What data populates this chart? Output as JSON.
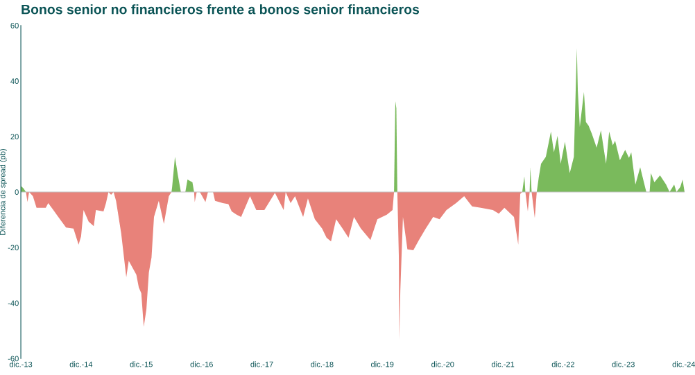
{
  "chart_data": {
    "type": "area",
    "title": "Bonos senior no financieros frente a bonos senior financieros",
    "ylabel": "Diferencia de spread (pb)",
    "x": [
      "2013-12-01",
      "2013-12-16",
      "2014-01-01",
      "2014-01-10",
      "2014-01-20",
      "2014-02-12",
      "2014-03-06",
      "2014-05-01",
      "2014-05-16",
      "2014-06-16",
      "2014-07-16",
      "2014-09-01",
      "2014-10-16",
      "2014-11-16",
      "2014-12-01",
      "2014-12-16",
      "2015-01-16",
      "2015-02-16",
      "2015-03-01",
      "2015-04-16",
      "2015-05-01",
      "2015-05-16",
      "2015-06-01",
      "2015-06-16",
      "2015-07-01",
      "2015-08-01",
      "2015-09-01",
      "2015-09-16",
      "2015-11-01",
      "2015-11-16",
      "2015-12-01",
      "2015-12-16",
      "2016-01-01",
      "2016-01-16",
      "2016-02-01",
      "2016-02-16",
      "2016-03-16",
      "2016-04-16",
      "2016-05-16",
      "2016-06-01",
      "2016-06-05",
      "2016-06-22",
      "2016-07-10",
      "2016-07-28",
      "2016-08-10",
      "2016-08-24",
      "2016-09-06",
      "2016-10-06",
      "2016-10-16",
      "2016-10-20",
      "2016-11-01",
      "2016-11-10",
      "2016-11-20",
      "2016-12-24",
      "2017-01-08",
      "2017-01-24",
      "2017-02-08",
      "2017-02-20",
      "2017-04-08",
      "2017-05-12",
      "2017-06-01",
      "2017-07-01",
      "2017-07-28",
      "2017-09-20",
      "2017-10-28",
      "2017-12-16",
      "2018-02-18",
      "2018-04-12",
      "2018-04-24",
      "2018-05-24",
      "2018-06-20",
      "2018-08-08",
      "2018-09-06",
      "2018-10-18",
      "2018-12-01",
      "2018-12-28",
      "2019-01-24",
      "2019-02-24",
      "2019-04-04",
      "2019-05-10",
      "2019-06-12",
      "2019-07-24",
      "2019-09-20",
      "2019-11-01",
      "2019-12-28",
      "2020-02-01",
      "2020-02-10",
      "2020-02-18",
      "2020-02-24",
      "2020-03-01",
      "2020-03-10",
      "2020-03-13",
      "2020-03-19",
      "2020-04-04",
      "2020-05-01",
      "2020-06-06",
      "2020-07-10",
      "2020-08-20",
      "2020-10-04",
      "2020-11-12",
      "2020-12-24",
      "2021-02-20",
      "2021-04-10",
      "2021-05-28",
      "2021-07-20",
      "2021-10-01",
      "2021-11-06",
      "2021-12-10",
      "2022-02-06",
      "2022-03-04",
      "2022-03-16",
      "2022-03-28",
      "2022-04-10",
      "2022-04-16",
      "2022-05-01",
      "2022-05-12",
      "2022-05-16",
      "2022-05-24",
      "2022-06-12",
      "2022-06-24",
      "2022-07-06",
      "2022-07-20",
      "2022-08-18",
      "2022-09-18",
      "2022-10-06",
      "2022-10-28",
      "2022-11-16",
      "2022-12-12",
      "2023-01-10",
      "2023-02-04",
      "2023-02-22",
      "2023-02-28",
      "2023-03-12",
      "2023-04-06",
      "2023-04-18",
      "2023-05-04",
      "2023-05-24",
      "2023-06-22",
      "2023-07-18",
      "2023-08-18",
      "2023-09-06",
      "2023-09-28",
      "2023-10-12",
      "2023-11-10",
      "2023-12-12",
      "2024-01-04",
      "2024-01-18",
      "2024-02-12",
      "2024-03-12",
      "2024-04-18",
      "2024-04-28",
      "2024-05-08",
      "2024-05-16",
      "2024-06-06",
      "2024-07-10",
      "2024-08-16",
      "2024-09-06",
      "2024-10-04",
      "2024-10-18",
      "2024-11-10",
      "2024-11-24",
      "2024-12-06"
    ],
    "series": [
      {
        "color": "#7aba5c",
        "values": [
          2.2,
          1.4,
          0,
          null,
          null,
          null,
          null,
          null,
          null,
          null,
          null,
          null,
          null,
          null,
          null,
          null,
          null,
          null,
          null,
          null,
          null,
          null,
          null,
          null,
          null,
          null,
          null,
          null,
          null,
          null,
          null,
          null,
          null,
          null,
          null,
          null,
          null,
          null,
          null,
          0,
          1.8,
          12.7,
          6,
          0,
          null,
          0,
          4.5,
          3.5,
          0,
          null,
          null,
          null,
          null,
          null,
          null,
          null,
          null,
          null,
          null,
          null,
          null,
          null,
          null,
          null,
          null,
          null,
          null,
          null,
          null,
          null,
          null,
          null,
          null,
          null,
          null,
          null,
          null,
          null,
          null,
          null,
          null,
          null,
          null,
          null,
          null,
          null,
          0,
          32.7,
          30.2,
          0,
          null,
          null,
          null,
          null,
          null,
          null,
          null,
          null,
          null,
          null,
          null,
          null,
          null,
          null,
          null,
          null,
          null,
          null,
          null,
          null,
          null,
          0,
          5.6,
          0,
          null,
          0,
          8.9,
          0,
          null,
          0,
          5.2,
          10.2,
          12.7,
          21.8,
          14.3,
          20.2,
          10.2,
          18.1,
          6.8,
          12.7,
          51.8,
          36.4,
          23.5,
          36,
          25.2,
          23.9,
          21,
          16,
          22.2,
          10.2,
          21.8,
          16.8,
          18.5,
          11.4,
          15.2,
          12.3,
          14.3,
          2.7,
          8.9,
          0,
          null,
          0,
          6.8,
          3.5,
          6,
          2.7,
          0,
          2.7,
          0,
          1.8,
          4.5,
          0
        ]
      },
      {
        "color": "#e8827a",
        "values": [
          null,
          null,
          0,
          -3.6,
          0,
          -1.5,
          -5.7,
          -5.7,
          -4,
          -6.5,
          -9,
          -12.8,
          -13.2,
          -19,
          -16,
          -6.5,
          -10.7,
          -12.3,
          -6.5,
          -7,
          -4,
          0,
          -1,
          0,
          -3.2,
          -14.8,
          -30.7,
          -24.8,
          -29.8,
          -34.4,
          -36.5,
          -48.6,
          -42.3,
          -29,
          -23.6,
          -9,
          -3.2,
          -11.5,
          -1.5,
          0,
          null,
          null,
          null,
          null,
          null,
          null,
          null,
          null,
          0,
          -3.6,
          0,
          null,
          0,
          -3.6,
          0,
          null,
          0,
          -3.2,
          -4,
          -4.4,
          -7,
          -8.2,
          -9,
          -1.5,
          -6.5,
          -6.5,
          -0.3,
          -6.5,
          0,
          -4,
          -1.5,
          -9,
          -2.3,
          -9.8,
          -13.2,
          -16.5,
          -17.8,
          -9.8,
          -13.2,
          -16.5,
          -9,
          -13.2,
          -17.3,
          -9.8,
          -8.2,
          -6.5,
          0,
          null,
          null,
          0,
          -23,
          -53.2,
          -35.7,
          -9,
          -20.7,
          -21,
          -17.3,
          -13.2,
          -9,
          -9.8,
          -6.5,
          -4,
          -1.5,
          -5.2,
          -5.7,
          -6.5,
          -7.8,
          -5.7,
          -9,
          -19,
          -0.7,
          0,
          null,
          0,
          -7,
          0,
          null,
          0,
          -9.4,
          0,
          null,
          null,
          null,
          null,
          null,
          null,
          null,
          null,
          null,
          null,
          null,
          null,
          null,
          null,
          null,
          null,
          null,
          null,
          null,
          null,
          null,
          null,
          null,
          null,
          null,
          null,
          null,
          null,
          null,
          null,
          null,
          null,
          null,
          null,
          null,
          null,
          null,
          null,
          null,
          null,
          null,
          null
        ]
      }
    ],
    "xlim": [
      "2013-12-01",
      "2024-12-06"
    ],
    "xticks": [
      {
        "value": "2013-12-01",
        "label": "dic.-13"
      },
      {
        "value": "2014-12-01",
        "label": "dic.-14"
      },
      {
        "value": "2015-12-01",
        "label": "dic.-15"
      },
      {
        "value": "2016-12-01",
        "label": "dic.-16"
      },
      {
        "value": "2017-12-01",
        "label": "dic.-17"
      },
      {
        "value": "2018-12-01",
        "label": "dic.-18"
      },
      {
        "value": "2019-12-01",
        "label": "dic.-19"
      },
      {
        "value": "2020-12-01",
        "label": "dic.-20"
      },
      {
        "value": "2021-12-01",
        "label": "dic.-21"
      },
      {
        "value": "2022-12-01",
        "label": "dic.-22"
      },
      {
        "value": "2023-12-01",
        "label": "dic.-23"
      },
      {
        "value": "2024-12-01",
        "label": "dic.-24"
      }
    ],
    "ylim": [
      -60,
      60
    ],
    "yticks": [
      -60,
      -40,
      -20,
      0,
      20,
      40,
      60
    ],
    "ref_lines": [
      {
        "axis": "y",
        "value": 0,
        "color": "#bfbfbf"
      }
    ],
    "grid": false,
    "legend": false
  }
}
